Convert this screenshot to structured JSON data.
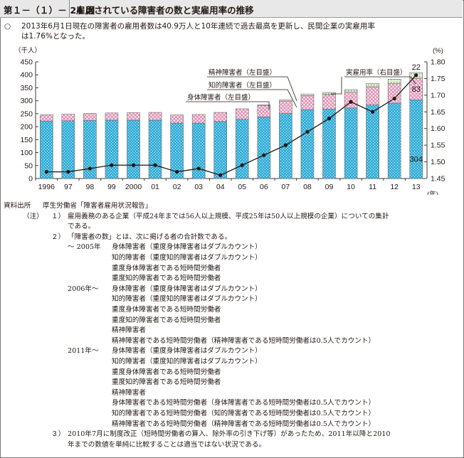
{
  "header": {
    "figure_no": "第１－（１）－ 24 図",
    "title": "雇用されている障害者の数と実雇用率の推移"
  },
  "summary": {
    "marker": "○",
    "line1": "2013年6月1日現在の障害者の雇用者数は40.9万人と10年連続で過去最高を更新し、民間企業の実雇用率",
    "line2": "は1.76%となった。"
  },
  "chart_data": {
    "type": "bar",
    "categories": [
      "1996",
      "97",
      "98",
      "99",
      "2000",
      "01",
      "02",
      "03",
      "04",
      "05",
      "06",
      "07",
      "08",
      "09",
      "10",
      "11",
      "12",
      "13"
    ],
    "x_unit": "(年)",
    "y_left": {
      "unit": "（千人）",
      "ticks": [
        0,
        50,
        100,
        150,
        200,
        250,
        300,
        350,
        400,
        450
      ],
      "ylim": [
        0,
        450
      ]
    },
    "y_right": {
      "unit": "(%)",
      "ticks": [
        "1.45",
        "1.50",
        "1.55",
        "1.60",
        "1.65",
        "1.70",
        "1.75",
        "1.80"
      ],
      "ylim": [
        1.45,
        1.8
      ]
    },
    "series": [
      {
        "name": "身体障害者（左目盛）",
        "axis": "left",
        "values": [
          222,
          223,
          224,
          225,
          225,
          225,
          214,
          214,
          220,
          229,
          238,
          251,
          266,
          268,
          272,
          284,
          291,
          304
        ]
      },
      {
        "name": "知的障害者（左目盛）",
        "axis": "left",
        "values": [
          24,
          25,
          27,
          28,
          29,
          30,
          31,
          33,
          35,
          40,
          44,
          48,
          54,
          56,
          61,
          70,
          75,
          83
        ]
      },
      {
        "name": "精神障害者（左目盛）",
        "axis": "left",
        "values": [
          0,
          0,
          0,
          0,
          0,
          0,
          0,
          0,
          0,
          0,
          2,
          4,
          6,
          8,
          10,
          13,
          17,
          22
        ]
      },
      {
        "name": "実雇用率（右目盛）",
        "axis": "right",
        "type": "line",
        "values": [
          1.47,
          1.47,
          1.48,
          1.49,
          1.49,
          1.49,
          1.47,
          1.48,
          1.46,
          1.49,
          1.52,
          1.55,
          1.59,
          1.63,
          1.68,
          1.65,
          1.69,
          1.76
        ]
      }
    ],
    "data_labels": [
      "304",
      "83",
      "22"
    ],
    "colors": {
      "physical": "#3bb3d9",
      "intellectual": "#e48fb0",
      "mental": "#93c47d",
      "line": "#231815",
      "axis": "#3a3a3a"
    },
    "grid": false
  },
  "notes": {
    "source_label": "資料出所",
    "source_text": "厚生労働省「障害者雇用状況報告」",
    "note_label": "（注）",
    "n1_num": "１）",
    "n1_l1": "雇用義務のある企業（平成24年までは56人以上規模、平成25年は50人以上規模の企業）についての集計",
    "n1_l2": "である。",
    "n2_num": "２）",
    "n2_l1": "「障害者の数」とは、次に掲げる者の合計数である。",
    "p1": "～ 2005年",
    "p1_items": [
      "身体障害者（重度身体障害者はダブルカウント）",
      "知的障害者（重度知的障害者はダブルカウント）",
      "重度身体障害者である短時間労働者",
      "重度知的障害者である短時間労働者"
    ],
    "p2": "2006年～",
    "p2_items": [
      "身体障害者（重度身体障害者はダブルカウント）",
      "知的障害者（重度知的障害者はダブルカウント）",
      "重度身体障害者である短時間労働者",
      "重度知的障害者である短時間労働者",
      "精神障害者",
      "精神障害者である短時間労働者（精神障害者である短時間労働者は0.5人でカウント）"
    ],
    "p3": "2011年～",
    "p3_items": [
      "身体障害者（重度身体障害者はダブルカウント）",
      "知的障害者（重度知的障害者はダブルカウント）",
      "重度身体障害者である短時間労働者",
      "重度知的障害者である短時間労働者",
      "精神障害者",
      "身体障害者である短時間労働者（身体障害者である短時間労働者は0.5人でカウント）",
      "知的障害者である短時間労働者（知的障害者である短時間労働者は0.5人でカウント）",
      "精神障害者である短時間労働者（精神障害者である短時間労働者は0.5人でカウント）"
    ],
    "n3_num": "３）",
    "n3_l1": "2010年7月に制度改正（短時間労働者の算入、除外率の引き下げ等）があったため、2011年以降と2010",
    "n3_l2": "年までの数値を単純に比較することは適当ではない状況である。"
  }
}
